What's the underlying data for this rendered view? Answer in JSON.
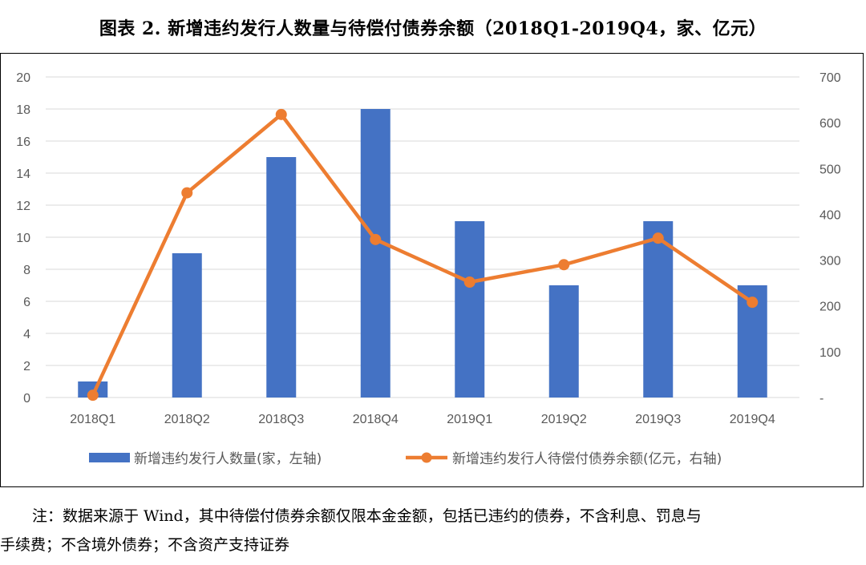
{
  "title": "图表 2. 新增违约发行人数量与待偿付债券余额（2018Q1-2019Q4，家、亿元）",
  "chart_data": {
    "type": "bar+line",
    "categories": [
      "2018Q1",
      "2018Q2",
      "2018Q3",
      "2018Q4",
      "2019Q1",
      "2019Q2",
      "2019Q3",
      "2019Q4"
    ],
    "series": [
      {
        "name": "新增违约发行人数量(家，左轴)",
        "type": "bar",
        "axis": "left",
        "values": [
          1,
          9,
          15,
          18,
          11,
          7,
          11,
          7
        ]
      },
      {
        "name": "新增违约发行人待偿付债券余额(亿元，右轴)",
        "type": "line",
        "axis": "right",
        "values": [
          5,
          447,
          618,
          345,
          252,
          290,
          348,
          208
        ]
      }
    ],
    "left_axis": {
      "min": 0,
      "max": 20,
      "ticks": [
        "0",
        "2",
        "4",
        "6",
        "8",
        "10",
        "12",
        "14",
        "16",
        "18",
        "20"
      ]
    },
    "right_axis": {
      "min": 0,
      "max": 700,
      "ticks": [
        "-",
        "100",
        "200",
        "300",
        "400",
        "500",
        "600",
        "700"
      ]
    },
    "grid": true,
    "legend_position": "bottom",
    "colors": {
      "bar": "#4472C4",
      "line": "#ED7D31",
      "grid": "#D9D9D9",
      "axis_text": "#595959"
    }
  },
  "note_line1": "注：数据来源于 Wind，其中待偿付债券余额仅限本金金额，包括已违约的债券，不含利息、罚息与",
  "note_line2": "手续费；不含境外债券；不含资产支持证券"
}
